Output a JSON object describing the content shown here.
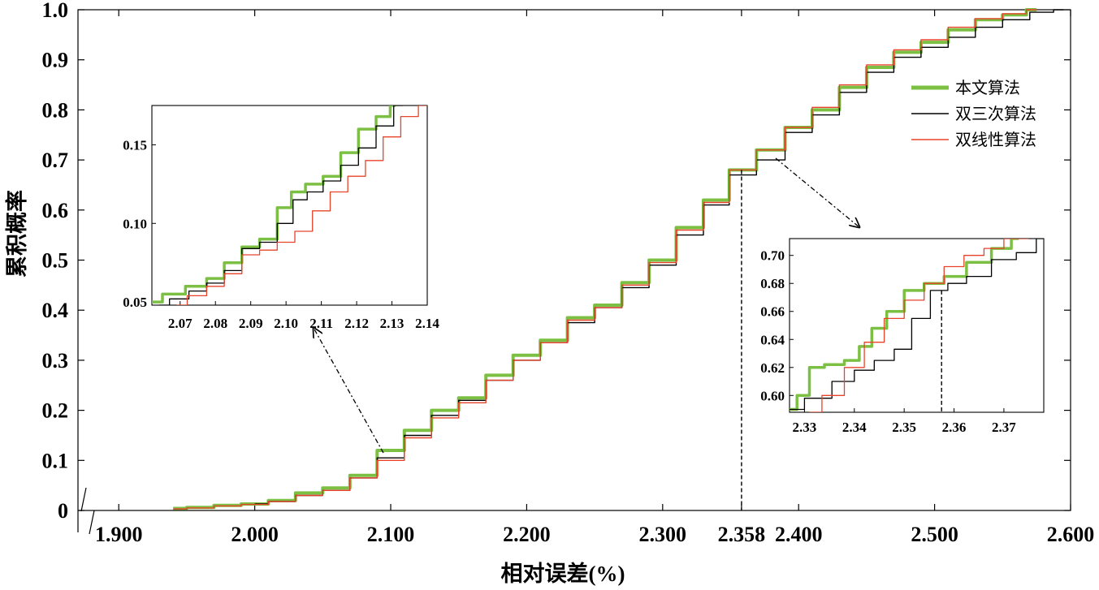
{
  "chart_data": {
    "type": "line",
    "title": "",
    "xlabel": "相对误差(%)",
    "ylabel": "累积概率",
    "xlim": [
      1.87,
      2.6
    ],
    "ylim": [
      0,
      1.0
    ],
    "x_ticks": [
      {
        "value": 1.9,
        "label": "1.900"
      },
      {
        "value": 2.0,
        "label": "2.000"
      },
      {
        "value": 2.1,
        "label": "2.100"
      },
      {
        "value": 2.2,
        "label": "2.200"
      },
      {
        "value": 2.3,
        "label": "2.300"
      },
      {
        "value": 2.358,
        "label": "2.358"
      },
      {
        "value": 2.4,
        "label": "2.400"
      },
      {
        "value": 2.5,
        "label": "2.500"
      },
      {
        "value": 2.6,
        "label": "2.600"
      }
    ],
    "y_ticks": [
      {
        "value": 0,
        "label": "0"
      },
      {
        "value": 0.1,
        "label": "0.1"
      },
      {
        "value": 0.2,
        "label": "0.2"
      },
      {
        "value": 0.3,
        "label": "0.3"
      },
      {
        "value": 0.4,
        "label": "0.4"
      },
      {
        "value": 0.5,
        "label": "0.5"
      },
      {
        "value": 0.6,
        "label": "0.6"
      },
      {
        "value": 0.7,
        "label": "0.7"
      },
      {
        "value": 0.8,
        "label": "0.8"
      },
      {
        "value": 0.9,
        "label": "0.9"
      },
      {
        "value": 1.0,
        "label": "1.0"
      }
    ],
    "grid": false,
    "legend_position": "right",
    "marker_line": {
      "x": 2.358,
      "y": 0.68
    },
    "series": [
      {
        "name": "本文算法",
        "color": "#7cc043",
        "x": [
          1.94,
          1.96,
          1.98,
          2.0,
          2.02,
          2.04,
          2.06,
          2.08,
          2.1,
          2.12,
          2.14,
          2.16,
          2.18,
          2.2,
          2.22,
          2.24,
          2.26,
          2.28,
          2.3,
          2.32,
          2.34,
          2.358,
          2.38,
          2.4,
          2.42,
          2.44,
          2.46,
          2.48,
          2.5,
          2.52,
          2.54,
          2.56,
          2.575
        ],
        "y": [
          0.004,
          0.006,
          0.01,
          0.013,
          0.02,
          0.035,
          0.045,
          0.07,
          0.12,
          0.16,
          0.2,
          0.225,
          0.27,
          0.31,
          0.34,
          0.385,
          0.41,
          0.455,
          0.5,
          0.565,
          0.62,
          0.68,
          0.72,
          0.765,
          0.8,
          0.845,
          0.885,
          0.915,
          0.935,
          0.96,
          0.98,
          0.99,
          1.0
        ]
      },
      {
        "name": "双三次算法",
        "color": "#000000",
        "x": [
          2.0,
          2.02,
          2.04,
          2.06,
          2.08,
          2.1,
          2.12,
          2.14,
          2.16,
          2.18,
          2.2,
          2.22,
          2.24,
          2.26,
          2.28,
          2.3,
          2.32,
          2.34,
          2.358,
          2.38,
          2.4,
          2.42,
          2.44,
          2.46,
          2.48,
          2.5,
          2.52,
          2.54,
          2.56,
          2.58,
          2.595
        ],
        "y": [
          0.013,
          0.018,
          0.03,
          0.04,
          0.065,
          0.105,
          0.15,
          0.19,
          0.22,
          0.26,
          0.3,
          0.335,
          0.375,
          0.405,
          0.445,
          0.49,
          0.55,
          0.61,
          0.67,
          0.7,
          0.755,
          0.79,
          0.835,
          0.875,
          0.905,
          0.925,
          0.945,
          0.965,
          0.98,
          0.995,
          1.0
        ]
      },
      {
        "name": "双线性算法",
        "color": "#e8432a",
        "x": [
          1.94,
          1.96,
          1.98,
          2.0,
          2.02,
          2.04,
          2.06,
          2.08,
          2.1,
          2.12,
          2.14,
          2.16,
          2.18,
          2.2,
          2.22,
          2.24,
          2.26,
          2.28,
          2.3,
          2.32,
          2.34,
          2.358,
          2.38,
          2.4,
          2.42,
          2.44,
          2.46,
          2.48,
          2.5,
          2.52,
          2.54,
          2.56,
          2.575
        ],
        "y": [
          0.003,
          0.005,
          0.009,
          0.012,
          0.018,
          0.03,
          0.04,
          0.065,
          0.1,
          0.145,
          0.185,
          0.215,
          0.26,
          0.3,
          0.335,
          0.38,
          0.405,
          0.45,
          0.495,
          0.56,
          0.615,
          0.68,
          0.72,
          0.765,
          0.805,
          0.85,
          0.89,
          0.92,
          0.94,
          0.965,
          0.982,
          0.992,
          1.0
        ]
      }
    ],
    "insets": [
      {
        "name": "inset-left",
        "xlim": [
          2.062,
          2.14
        ],
        "ylim": [
          0.048,
          0.175
        ],
        "x_ticks": [
          {
            "value": 2.07,
            "label": "2.07"
          },
          {
            "value": 2.08,
            "label": "2.08"
          },
          {
            "value": 2.09,
            "label": "2.09"
          },
          {
            "value": 2.1,
            "label": "2.10"
          },
          {
            "value": 2.11,
            "label": "2.11"
          },
          {
            "value": 2.12,
            "label": "2.12"
          },
          {
            "value": 2.13,
            "label": "2.13"
          },
          {
            "value": 2.14,
            "label": "2.14"
          }
        ],
        "y_ticks": [
          {
            "value": 0.05,
            "label": "0.05"
          },
          {
            "value": 0.1,
            "label": "0.10"
          },
          {
            "value": 0.15,
            "label": "0.15"
          }
        ],
        "series": [
          {
            "name": "本文算法",
            "x": [
              2.062,
              2.068,
              2.075,
              2.08,
              2.085,
              2.09,
              2.095,
              2.1,
              2.103,
              2.108,
              2.113,
              2.118,
              2.123,
              2.128,
              2.131
            ],
            "y": [
              0.05,
              0.055,
              0.06,
              0.065,
              0.075,
              0.085,
              0.09,
              0.11,
              0.12,
              0.125,
              0.13,
              0.145,
              0.16,
              0.168,
              0.175
            ]
          },
          {
            "name": "双三次算法",
            "x": [
              2.064,
              2.07,
              2.075,
              2.08,
              2.085,
              2.09,
              2.095,
              2.1,
              2.104,
              2.108,
              2.113,
              2.118,
              2.123,
              2.128,
              2.133
            ],
            "y": [
              0.048,
              0.052,
              0.057,
              0.062,
              0.07,
              0.084,
              0.088,
              0.1,
              0.115,
              0.12,
              0.127,
              0.137,
              0.148,
              0.162,
              0.175
            ]
          },
          {
            "name": "双线性算法",
            "x": [
              2.069,
              2.075,
              2.08,
              2.085,
              2.09,
              2.095,
              2.1,
              2.105,
              2.11,
              2.115,
              2.12,
              2.125,
              2.13,
              2.135,
              2.14
            ],
            "y": [
              0.048,
              0.054,
              0.06,
              0.068,
              0.08,
              0.083,
              0.088,
              0.095,
              0.108,
              0.12,
              0.13,
              0.14,
              0.155,
              0.168,
              0.175
            ]
          }
        ]
      },
      {
        "name": "inset-right",
        "xlim": [
          2.327,
          2.378
        ],
        "ylim": [
          0.588,
          0.712
        ],
        "x_ticks": [
          {
            "value": 2.33,
            "label": "2.33"
          },
          {
            "value": 2.34,
            "label": "2.34"
          },
          {
            "value": 2.35,
            "label": "2.35"
          },
          {
            "value": 2.36,
            "label": "2.36"
          },
          {
            "value": 2.37,
            "label": "2.37"
          }
        ],
        "y_ticks": [
          {
            "value": 0.6,
            "label": "0.60"
          },
          {
            "value": 0.62,
            "label": "0.62"
          },
          {
            "value": 0.64,
            "label": "0.64"
          },
          {
            "value": 0.66,
            "label": "0.66"
          },
          {
            "value": 0.68,
            "label": "0.68"
          },
          {
            "value": 0.7,
            "label": "0.70"
          }
        ],
        "marker_x": 2.3575,
        "series": [
          {
            "name": "本文算法",
            "x": [
              2.327,
              2.33,
              2.332,
              2.336,
              2.34,
              2.342,
              2.345,
              2.348,
              2.352,
              2.356,
              2.36,
              2.365,
              2.37,
              2.373
            ],
            "y": [
              0.59,
              0.6,
              0.62,
              0.622,
              0.625,
              0.635,
              0.648,
              0.66,
              0.675,
              0.68,
              0.685,
              0.695,
              0.705,
              0.712
            ]
          },
          {
            "name": "双三次算法",
            "x": [
              2.327,
              2.333,
              2.338,
              2.342,
              2.346,
              2.35,
              2.353,
              2.3575,
              2.36,
              2.365,
              2.37,
              2.375,
              2.378
            ],
            "y": [
              0.59,
              0.598,
              0.61,
              0.618,
              0.625,
              0.633,
              0.655,
              0.675,
              0.68,
              0.685,
              0.697,
              0.702,
              0.712
            ]
          },
          {
            "name": "双线性算法",
            "x": [
              2.331,
              2.336,
              2.34,
              2.344,
              2.348,
              2.352,
              2.356,
              2.36,
              2.364,
              2.368,
              2.372,
              2.375
            ],
            "y": [
              0.588,
              0.6,
              0.62,
              0.638,
              0.655,
              0.668,
              0.68,
              0.692,
              0.7,
              0.705,
              0.712,
              0.712
            ]
          }
        ]
      }
    ]
  }
}
